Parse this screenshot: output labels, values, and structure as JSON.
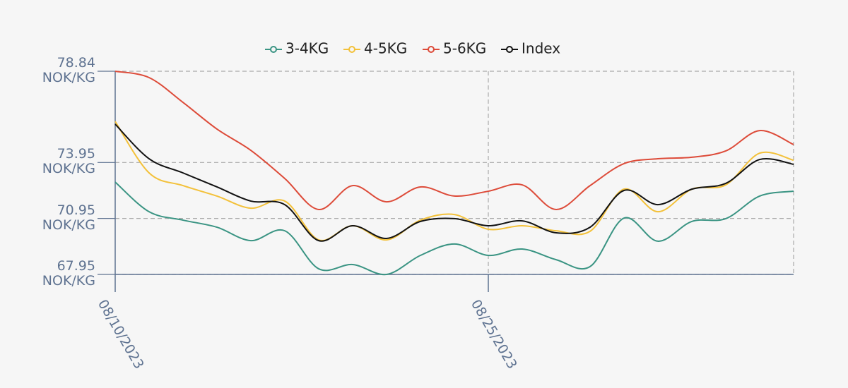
{
  "chart_data": {
    "type": "line",
    "categories": [
      "08/10/2023",
      null,
      null,
      null,
      null,
      null,
      null,
      null,
      null,
      null,
      null,
      "08/25/2023",
      null,
      null,
      null,
      null,
      null,
      null,
      null,
      null,
      null
    ],
    "series": [
      {
        "name": "3-4KG",
        "color": "#3a9483",
        "values": [
          72.9,
          71.31,
          70.86,
          70.48,
          69.76,
          70.29,
          68.25,
          68.48,
          67.95,
          68.97,
          69.58,
          68.97,
          69.31,
          68.74,
          68.37,
          70.97,
          69.73,
          70.79,
          70.94,
          72.15,
          72.41
        ]
      },
      {
        "name": "4-5KG",
        "color": "#f3c13a",
        "values": [
          76.15,
          73.39,
          72.71,
          72.15,
          71.5,
          71.88,
          69.8,
          70.56,
          69.8,
          70.86,
          71.16,
          70.37,
          70.56,
          70.29,
          70.26,
          72.52,
          71.31,
          72.52,
          72.75,
          74.45,
          74.07
        ]
      },
      {
        "name": "5-6KG",
        "color": "#dd4b39",
        "values": [
          78.84,
          78.5,
          77.17,
          75.74,
          74.6,
          73.09,
          71.43,
          72.71,
          71.84,
          72.64,
          72.15,
          72.41,
          72.75,
          71.43,
          72.71,
          73.89,
          74.15,
          74.23,
          74.57,
          75.66,
          74.91
        ]
      },
      {
        "name": "Index",
        "color": "#111111",
        "values": [
          76.0,
          74.15,
          73.39,
          72.64,
          71.88,
          71.69,
          69.76,
          70.56,
          69.88,
          70.79,
          70.94,
          70.56,
          70.82,
          70.18,
          70.48,
          72.45,
          71.69,
          72.52,
          72.83,
          74.11,
          73.85
        ]
      }
    ],
    "ylim": [
      67.95,
      78.84
    ],
    "yticks": [
      {
        "value": 67.95,
        "label": "67.95\nNOK/KG"
      },
      {
        "value": 70.95,
        "label": "70.95\nNOK/KG"
      },
      {
        "value": 73.95,
        "label": "73.95\nNOK/KG"
      },
      {
        "value": 78.84,
        "label": "78.84\nNOK/KG"
      }
    ],
    "grid": true,
    "legend": "top"
  }
}
